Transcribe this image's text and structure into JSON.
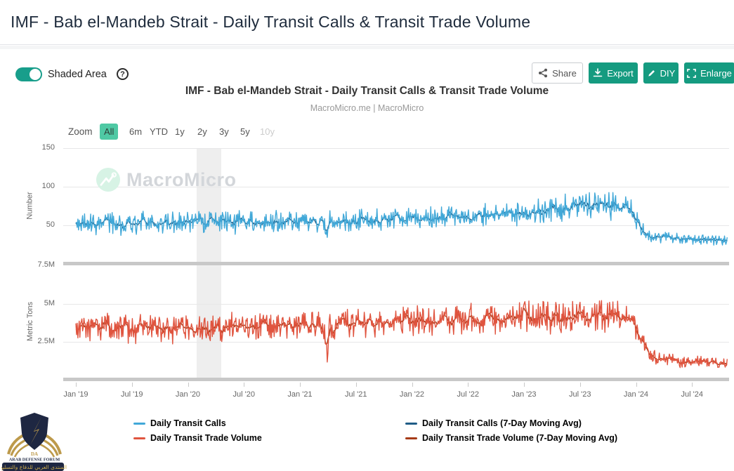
{
  "header": {
    "title": "IMF - Bab el-Mandeb Strait - Daily Transit Calls & Transit Trade Volume"
  },
  "toolbar": {
    "shaded_area_label": "Shaded Area",
    "shaded_area_on": true,
    "help_glyph": "?",
    "share_label": "Share",
    "export_label": "Export",
    "diy_label": "DIY",
    "enlarge_label": "Enlarge",
    "accent_green": "#159b80",
    "toggle_green": "#189e8b"
  },
  "zoom": {
    "label": "Zoom",
    "options": [
      "All",
      "6m",
      "YTD",
      "1y",
      "2y",
      "3y",
      "5y",
      "10y"
    ],
    "selected": "All",
    "disabled_option": "10y",
    "selected_bg": "#4fc9a4"
  },
  "watermark": {
    "brand": "MacroMicro"
  },
  "stamp": {
    "monogram": "DA",
    "name": "ARAB DEFENSE FORUM",
    "arabic": "المنتدى العربي للدفاع والتسليح",
    "gold": "#bd9a4b",
    "navy": "#1e2742"
  },
  "chart_data": {
    "type": "line",
    "title": "IMF - Bab el-Mandeb Strait - Daily Transit Calls & Transit Trade Volume",
    "subtitle": "MacroMicro.me | MacroMicro",
    "x_range": [
      2019.0,
      2024.82
    ],
    "x_tick_step_years": 0.5,
    "x_tick_labels": [
      "Jan '19",
      "Jul '19",
      "Jan '20",
      "Jul '20",
      "Jan '21",
      "Jul '21",
      "Jan '22",
      "Jul '22",
      "Jan '23",
      "Jul '23",
      "Jan '24",
      "Jul '24"
    ],
    "shaded_area": {
      "from": 2020.08,
      "to": 2020.3
    },
    "grid": true,
    "legend_position": "bottom",
    "panels": [
      {
        "ylabel": "Number",
        "ylim": [
          0,
          150
        ],
        "ytick_labels": [
          "150",
          "100",
          "50"
        ],
        "ytick_values": [
          150,
          100,
          50
        ],
        "series": [
          {
            "name": "Daily Transit Calls",
            "color": "#41a8d8",
            "ma_name": "Daily Transit Calls (7-Day Moving Avg)",
            "ma_color": "#1f5c86",
            "seed": 20190101,
            "anchors": [
              [
                2019.0,
                52,
                11
              ],
              [
                2019.6,
                53,
                11
              ],
              [
                2020.1,
                54,
                11
              ],
              [
                2020.6,
                54,
                10
              ],
              [
                2021.0,
                55,
                10
              ],
              [
                2021.5,
                56,
                10
              ],
              [
                2022.0,
                58,
                10
              ],
              [
                2022.5,
                62,
                11
              ],
              [
                2023.0,
                67,
                12
              ],
              [
                2023.4,
                72,
                13
              ],
              [
                2023.7,
                76,
                13
              ],
              [
                2023.95,
                71,
                11
              ],
              [
                2024.1,
                36,
                6
              ],
              [
                2024.45,
                33,
                5
              ],
              [
                2024.82,
                31,
                5
              ]
            ],
            "dip": {
              "t": 2021.24,
              "depth": 20,
              "width": 0.013
            }
          }
        ]
      },
      {
        "ylabel": "Metric Tons",
        "ylim": [
          0,
          7.5
        ],
        "unit": "M",
        "ytick_labels": [
          "7.5M",
          "5M",
          "2.5M"
        ],
        "ytick_values": [
          7.5,
          5,
          2.5
        ],
        "series": [
          {
            "name": "Daily Transit Trade Volume",
            "color": "#e0543f",
            "ma_name": "Daily Transit Trade Volume (7-Day Moving Avg)",
            "ma_color": "#a63b17",
            "seed": 77777,
            "anchors": [
              [
                2019.0,
                3.5,
                0.75
              ],
              [
                2019.6,
                3.4,
                0.75
              ],
              [
                2020.1,
                3.45,
                0.7
              ],
              [
                2020.6,
                3.55,
                0.7
              ],
              [
                2021.0,
                3.6,
                0.7
              ],
              [
                2021.5,
                3.7,
                0.7
              ],
              [
                2022.0,
                3.85,
                0.7
              ],
              [
                2022.5,
                4.0,
                0.75
              ],
              [
                2023.0,
                4.1,
                0.8
              ],
              [
                2023.5,
                4.25,
                0.85
              ],
              [
                2023.95,
                4.1,
                0.7
              ],
              [
                2024.12,
                1.5,
                0.33
              ],
              [
                2024.4,
                1.2,
                0.28
              ],
              [
                2024.82,
                1.05,
                0.25
              ]
            ],
            "dip": {
              "t": 2021.24,
              "depth": 2.2,
              "width": 0.013
            }
          }
        ]
      }
    ],
    "legend": [
      {
        "label": "Daily Transit Calls",
        "color": "#41a8d8"
      },
      {
        "label": "Daily Transit Trade Volume",
        "color": "#e0543f"
      },
      {
        "label": "Daily Transit Calls (7-Day Moving Avg)",
        "color": "#1f5c86"
      },
      {
        "label": "Daily Transit Trade Volume (7-Day Moving Avg)",
        "color": "#a63b17"
      }
    ]
  }
}
